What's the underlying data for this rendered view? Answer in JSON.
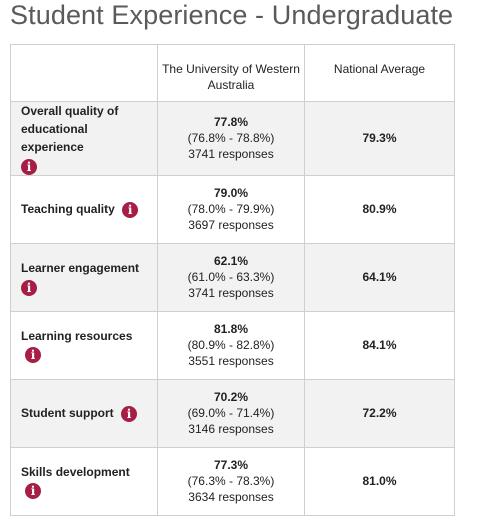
{
  "title": "Student Experience - Undergraduate",
  "header": {
    "col1": "",
    "col2": "The University of Western Australia",
    "col3": "National Average"
  },
  "info_icon_glyph": "i",
  "accent_color": "#a61d45",
  "rows": [
    {
      "label": "Overall quality of educational experience",
      "pct": "77.8%",
      "range": "(76.8% - 78.8%)",
      "responses": "3741 responses",
      "national": "79.3%"
    },
    {
      "label": "Teaching quality",
      "pct": "79.0%",
      "range": "(78.0% - 79.9%)",
      "responses": "3697 responses",
      "national": "80.9%"
    },
    {
      "label": "Learner engagement",
      "pct": "62.1%",
      "range": "(61.0% - 63.3%)",
      "responses": "3741 responses",
      "national": "64.1%"
    },
    {
      "label": "Learning resources",
      "pct": "81.8%",
      "range": "(80.9% - 82.8%)",
      "responses": "3551 responses",
      "national": "84.1%"
    },
    {
      "label": "Student support",
      "pct": "70.2%",
      "range": "(69.0% - 71.4%)",
      "responses": "3146 responses",
      "national": "72.2%"
    },
    {
      "label": "Skills development",
      "pct": "77.3%",
      "range": "(76.3% - 78.3%)",
      "responses": "3634 responses",
      "national": "81.0%"
    }
  ]
}
